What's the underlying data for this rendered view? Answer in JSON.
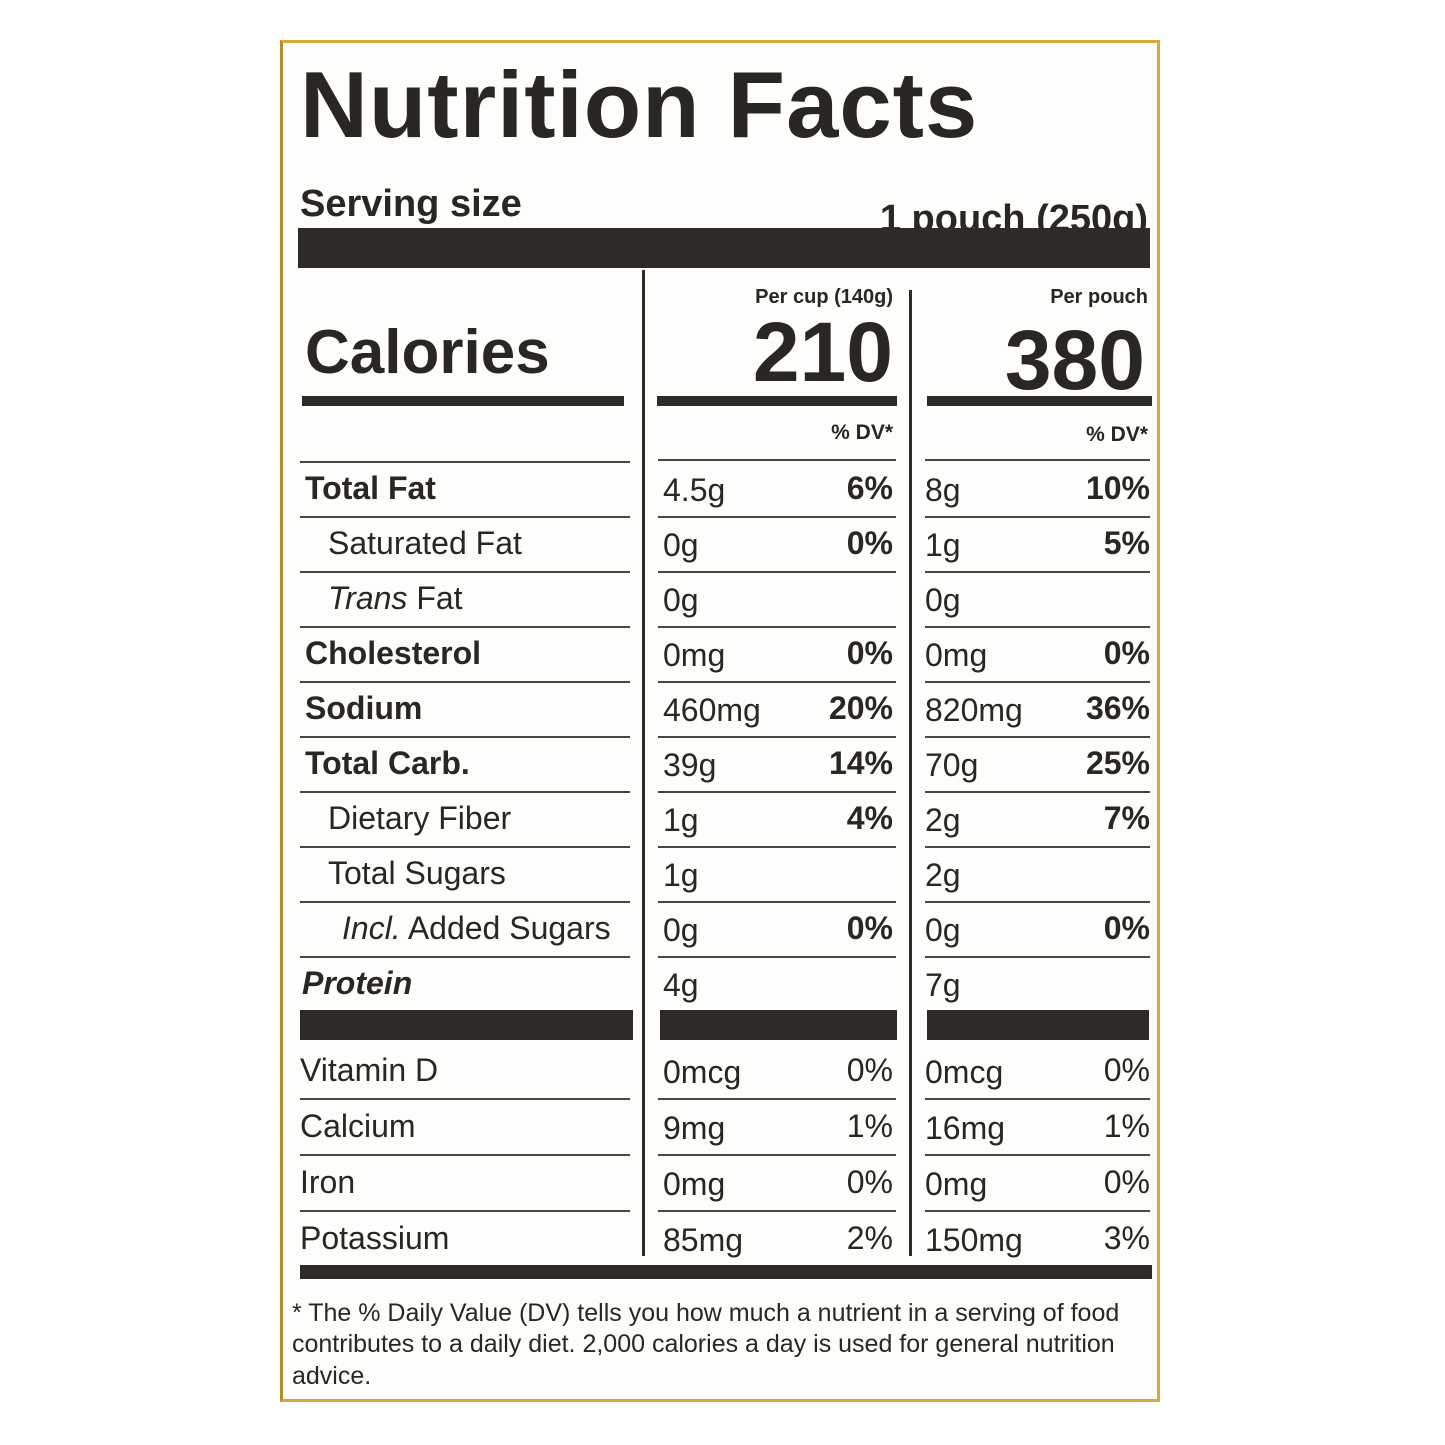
{
  "title": "Nutrition Facts",
  "serving_size": {
    "label": "Serving size",
    "value": "1 pouch (250g)"
  },
  "calories": {
    "label": "Calories",
    "columns": [
      {
        "header": "Per cup (140g)",
        "value": "210"
      },
      {
        "header": "Per pouch",
        "value": "380"
      }
    ]
  },
  "dv_headers": [
    "% DV*",
    "% DV*"
  ],
  "nutrients": [
    {
      "name": "Total Fat",
      "cup": [
        "4.5g",
        "6%"
      ],
      "pouch": [
        "8g",
        "10%"
      ]
    },
    {
      "name": "Saturated Fat",
      "cup": [
        "0g",
        "0%"
      ],
      "pouch": [
        "1g",
        "5%"
      ]
    },
    {
      "italic": "Trans",
      "name": "Fat",
      "cup": [
        "0g"
      ],
      "pouch": [
        "0g"
      ]
    },
    {
      "name": "Cholesterol",
      "cup": [
        "0mg",
        "0%"
      ],
      "pouch": [
        "0mg",
        "0%"
      ]
    },
    {
      "name": "Sodium",
      "cup": [
        "460mg",
        "20%"
      ],
      "pouch": [
        "820mg",
        "36%"
      ]
    },
    {
      "name": "Total Carb.",
      "cup": [
        "39g",
        "14%"
      ],
      "pouch": [
        "70g",
        "25%"
      ]
    },
    {
      "name": "Dietary Fiber",
      "cup": [
        "1g",
        "4%"
      ],
      "pouch": [
        "2g",
        "7%"
      ]
    },
    {
      "name": "Total Sugars",
      "cup": [
        "1g"
      ],
      "pouch": [
        "2g"
      ]
    },
    {
      "italic": "Incl.",
      "name": "Added Sugars",
      "cup": [
        "0g",
        "0%"
      ],
      "pouch": [
        "0g",
        "0%"
      ]
    },
    {
      "name": "Protein",
      "cup": [
        "4g"
      ],
      "pouch": [
        "7g"
      ]
    }
  ],
  "vitamins": [
    {
      "name": "Vitamin D",
      "cup": [
        "0mcg",
        "0%"
      ],
      "pouch": [
        "0mcg",
        "0%"
      ]
    },
    {
      "name": "Calcium",
      "cup": [
        "9mg",
        "1%"
      ],
      "pouch": [
        "16mg",
        "1%"
      ]
    },
    {
      "name": "Iron",
      "cup": [
        "0mg",
        "0%"
      ],
      "pouch": [
        "0mg",
        "0%"
      ]
    },
    {
      "name": "Potassium",
      "cup": [
        "85mg",
        "2%"
      ],
      "pouch": [
        "150mg",
        "3%"
      ]
    }
  ],
  "footnote": "* The % Daily Value (DV) tells you how much a nutrient in a serving of food contributes to a daily diet. 2,000 calories a day is used for general nutrition advice."
}
